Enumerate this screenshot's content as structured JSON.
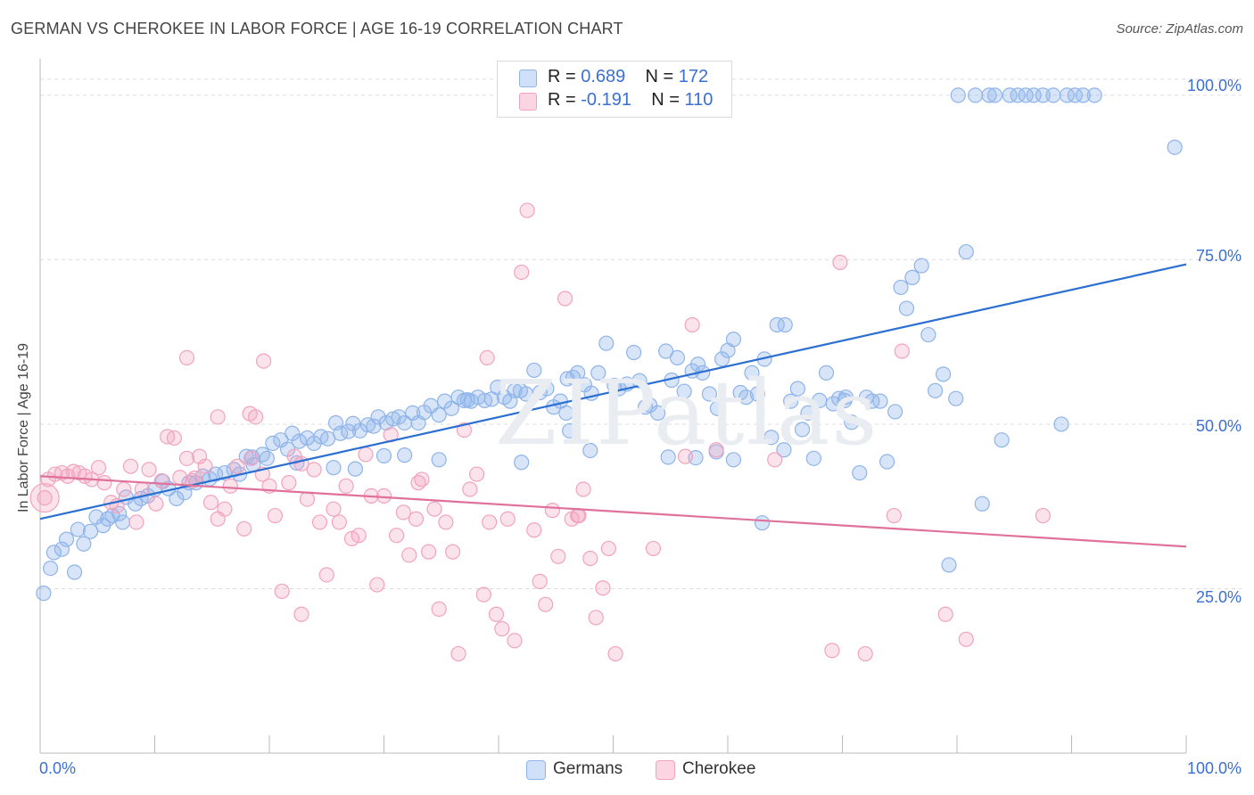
{
  "header": {
    "title": "GERMAN VS CHEROKEE IN LABOR FORCE | AGE 16-19 CORRELATION CHART",
    "source": "Source: ZipAtlas.com"
  },
  "watermark": "ZIPatlas",
  "stats": [
    {
      "r_label": "R =",
      "r_value": "0.689",
      "n_label": "N =",
      "n_value": "172",
      "color": "#8fb4ea"
    },
    {
      "r_label": "R =",
      "r_value": "-0.191",
      "n_label": "N =",
      "n_value": "110",
      "color": "#f2a3bd"
    }
  ],
  "legend": [
    {
      "label": "Germans",
      "color": "#8fb4ea"
    },
    {
      "label": "Cherokee",
      "color": "#f2a3bd"
    }
  ],
  "chart_data": {
    "type": "scatter",
    "title": "GERMAN VS CHEROKEE IN LABOR FORCE | AGE 16-19 CORRELATION CHART",
    "xlabel": "",
    "ylabel": "In Labor Force | Age 16-19",
    "xlim": [
      0,
      100
    ],
    "ylim": [
      0,
      105
    ],
    "x_tick_labels": [
      "0.0%",
      "100.0%"
    ],
    "y_ticks": [
      25,
      50,
      75,
      100
    ],
    "y_tick_labels": [
      "25.0%",
      "50.0%",
      "75.0%",
      "100.0%"
    ],
    "grid": true,
    "legend_position": "bottom",
    "series": [
      {
        "name": "Germans",
        "color": "#8fb4ea",
        "line_color": "#2a6fd1",
        "trend": {
          "x": [
            0,
            100
          ],
          "y": [
            35.6,
            74.3
          ]
        },
        "points": [
          [
            0.3,
            24.3
          ],
          [
            0.9,
            28.1
          ],
          [
            1.2,
            30.5
          ],
          [
            1.9,
            31.0
          ],
          [
            2.3,
            32.5
          ],
          [
            3.0,
            27.5
          ],
          [
            3.3,
            34.0
          ],
          [
            3.8,
            31.8
          ],
          [
            4.4,
            33.7
          ],
          [
            4.9,
            35.9
          ],
          [
            5.5,
            34.6
          ],
          [
            5.9,
            35.6
          ],
          [
            6.3,
            36.1
          ],
          [
            6.9,
            36.4
          ],
          [
            7.2,
            35.1
          ],
          [
            7.5,
            38.9
          ],
          [
            8.3,
            37.9
          ],
          [
            8.8,
            38.7
          ],
          [
            9.4,
            39.1
          ],
          [
            10.0,
            40.1
          ],
          [
            10.7,
            41.3
          ],
          [
            11.2,
            40.2
          ],
          [
            11.9,
            38.7
          ],
          [
            12.6,
            39.6
          ],
          [
            13.0,
            41.1
          ],
          [
            13.6,
            41.1
          ],
          [
            14.2,
            42.1
          ],
          [
            14.8,
            41.7
          ],
          [
            15.3,
            42.4
          ],
          [
            16.1,
            42.6
          ],
          [
            16.9,
            43.1
          ],
          [
            17.4,
            42.4
          ],
          [
            18.0,
            45.1
          ],
          [
            18.6,
            43.8
          ],
          [
            19.4,
            45.4
          ],
          [
            19.8,
            44.8
          ],
          [
            20.3,
            47.1
          ],
          [
            21.0,
            47.6
          ],
          [
            21.6,
            46.2
          ],
          [
            22.0,
            48.6
          ],
          [
            22.6,
            47.4
          ],
          [
            23.3,
            47.9
          ],
          [
            23.9,
            47.1
          ],
          [
            24.5,
            48.1
          ],
          [
            25.1,
            47.8
          ],
          [
            25.8,
            50.2
          ],
          [
            26.2,
            48.6
          ],
          [
            26.9,
            48.9
          ],
          [
            27.3,
            50.1
          ],
          [
            27.9,
            49.0
          ],
          [
            28.6,
            49.9
          ],
          [
            29.1,
            49.7
          ],
          [
            29.5,
            51.1
          ],
          [
            30.2,
            50.2
          ],
          [
            30.8,
            50.8
          ],
          [
            31.3,
            51.1
          ],
          [
            31.8,
            50.2
          ],
          [
            32.5,
            51.7
          ],
          [
            33.0,
            50.2
          ],
          [
            33.5,
            51.8
          ],
          [
            34.1,
            52.8
          ],
          [
            34.8,
            51.4
          ],
          [
            35.3,
            53.5
          ],
          [
            35.9,
            52.4
          ],
          [
            36.5,
            54.1
          ],
          [
            37.0,
            53.6
          ],
          [
            37.6,
            53.5
          ],
          [
            38.2,
            54.1
          ],
          [
            38.8,
            53.6
          ],
          [
            39.4,
            53.8
          ],
          [
            39.9,
            55.6
          ],
          [
            40.5,
            54.1
          ],
          [
            41.0,
            53.5
          ],
          [
            41.4,
            55.1
          ],
          [
            41.9,
            55.1
          ],
          [
            42.4,
            54.6
          ],
          [
            43.1,
            58.2
          ],
          [
            43.6,
            54.8
          ],
          [
            44.2,
            55.4
          ],
          [
            44.8,
            52.6
          ],
          [
            45.4,
            53.5
          ],
          [
            45.9,
            51.7
          ],
          [
            46.5,
            57.1
          ],
          [
            46.9,
            57.8
          ],
          [
            47.5,
            56.0
          ],
          [
            48.1,
            54.7
          ],
          [
            48.7,
            57.8
          ],
          [
            49.4,
            62.3
          ],
          [
            50.1,
            55.9
          ],
          [
            50.5,
            55.4
          ],
          [
            51.2,
            56.1
          ],
          [
            51.8,
            60.9
          ],
          [
            52.3,
            56.6
          ],
          [
            52.8,
            52.6
          ],
          [
            53.2,
            52.9
          ],
          [
            53.9,
            51.7
          ],
          [
            54.6,
            61.1
          ],
          [
            55.1,
            56.7
          ],
          [
            55.6,
            60.1
          ],
          [
            56.2,
            55.0
          ],
          [
            56.9,
            58.1
          ],
          [
            57.4,
            59.1
          ],
          [
            57.8,
            57.8
          ],
          [
            58.4,
            54.6
          ],
          [
            59.1,
            52.4
          ],
          [
            59.5,
            59.9
          ],
          [
            60.0,
            61.2
          ],
          [
            60.5,
            62.9
          ],
          [
            61.1,
            54.8
          ],
          [
            61.6,
            54.1
          ],
          [
            62.1,
            57.8
          ],
          [
            62.6,
            54.6
          ],
          [
            63.2,
            59.9
          ],
          [
            63.8,
            48.0
          ],
          [
            64.3,
            65.1
          ],
          [
            64.9,
            46.1
          ],
          [
            65.5,
            53.5
          ],
          [
            66.1,
            55.4
          ],
          [
            66.5,
            49.2
          ],
          [
            67.0,
            51.7
          ],
          [
            67.5,
            44.8
          ],
          [
            68.0,
            53.6
          ],
          [
            68.6,
            57.8
          ],
          [
            69.2,
            53.1
          ],
          [
            69.7,
            53.9
          ],
          [
            70.3,
            54.1
          ],
          [
            70.8,
            50.3
          ],
          [
            71.5,
            42.6
          ],
          [
            72.1,
            54.1
          ],
          [
            72.6,
            53.5
          ],
          [
            73.3,
            53.5
          ],
          [
            73.9,
            44.3
          ],
          [
            74.6,
            51.9
          ],
          [
            75.1,
            70.8
          ],
          [
            75.6,
            67.6
          ],
          [
            76.1,
            72.3
          ],
          [
            76.9,
            74.1
          ],
          [
            77.5,
            63.6
          ],
          [
            78.1,
            55.1
          ],
          [
            78.8,
            57.6
          ],
          [
            79.3,
            28.6
          ],
          [
            79.9,
            53.9
          ],
          [
            80.1,
            100.0
          ],
          [
            80.8,
            76.2
          ],
          [
            81.6,
            100.0
          ],
          [
            82.2,
            37.9
          ],
          [
            82.8,
            100.0
          ],
          [
            83.3,
            100.0
          ],
          [
            83.9,
            47.6
          ],
          [
            84.6,
            100.0
          ],
          [
            85.3,
            100.0
          ],
          [
            86.0,
            100.0
          ],
          [
            86.7,
            100.0
          ],
          [
            87.5,
            100.0
          ],
          [
            88.4,
            100.0
          ],
          [
            89.1,
            50.0
          ],
          [
            89.6,
            100.0
          ],
          [
            90.3,
            100.0
          ],
          [
            91.0,
            100.0
          ],
          [
            92.0,
            100.0
          ],
          [
            34.8,
            44.6
          ],
          [
            27.5,
            43.2
          ],
          [
            18.5,
            45.0
          ],
          [
            63.0,
            35.0
          ],
          [
            54.8,
            45.0
          ],
          [
            60.5,
            44.6
          ],
          [
            37.3,
            53.7
          ],
          [
            65.0,
            65.1
          ],
          [
            70.2,
            53.6
          ],
          [
            22.4,
            44.1
          ],
          [
            42.0,
            44.2
          ],
          [
            31.8,
            45.3
          ],
          [
            46.0,
            56.9
          ],
          [
            25.6,
            43.4
          ],
          [
            48.0,
            46.0
          ],
          [
            57.2,
            44.9
          ],
          [
            99.0,
            92.1
          ],
          [
            59.0,
            45.8
          ],
          [
            46.2,
            49.0
          ],
          [
            30.0,
            45.2
          ]
        ]
      },
      {
        "name": "Cherokee",
        "color": "#f2a3bd",
        "line_color": "#e0719a",
        "trend": {
          "x": [
            0,
            100
          ],
          "y": [
            42.1,
            31.4
          ]
        },
        "points": [
          [
            0.4,
            38.8
          ],
          [
            0.7,
            41.6
          ],
          [
            1.3,
            42.4
          ],
          [
            1.9,
            42.6
          ],
          [
            2.4,
            42.1
          ],
          [
            2.9,
            42.8
          ],
          [
            3.4,
            42.6
          ],
          [
            3.9,
            42.1
          ],
          [
            4.5,
            41.6
          ],
          [
            5.1,
            43.4
          ],
          [
            5.6,
            41.1
          ],
          [
            6.2,
            38.1
          ],
          [
            6.7,
            37.6
          ],
          [
            7.3,
            40.1
          ],
          [
            7.9,
            43.6
          ],
          [
            8.4,
            35.1
          ],
          [
            8.9,
            40.1
          ],
          [
            9.5,
            43.1
          ],
          [
            10.1,
            37.9
          ],
          [
            10.6,
            41.4
          ],
          [
            11.1,
            48.1
          ],
          [
            11.7,
            47.9
          ],
          [
            12.2,
            41.9
          ],
          [
            12.8,
            44.8
          ],
          [
            13.3,
            41.4
          ],
          [
            13.9,
            45.1
          ],
          [
            14.4,
            43.6
          ],
          [
            14.9,
            38.1
          ],
          [
            15.5,
            35.6
          ],
          [
            16.1,
            37.1
          ],
          [
            16.6,
            40.6
          ],
          [
            17.2,
            43.6
          ],
          [
            17.8,
            34.1
          ],
          [
            18.4,
            44.8
          ],
          [
            18.8,
            51.1
          ],
          [
            19.4,
            42.4
          ],
          [
            20.0,
            40.6
          ],
          [
            20.5,
            36.1
          ],
          [
            21.1,
            24.6
          ],
          [
            21.7,
            41.1
          ],
          [
            22.2,
            45.1
          ],
          [
            22.8,
            21.1
          ],
          [
            23.3,
            38.6
          ],
          [
            23.9,
            43.1
          ],
          [
            24.4,
            35.1
          ],
          [
            25.0,
            27.1
          ],
          [
            25.6,
            37.1
          ],
          [
            26.1,
            35.1
          ],
          [
            26.7,
            40.6
          ],
          [
            27.2,
            32.6
          ],
          [
            27.8,
            33.1
          ],
          [
            28.4,
            45.4
          ],
          [
            28.9,
            39.1
          ],
          [
            29.4,
            25.6
          ],
          [
            30.0,
            39.1
          ],
          [
            30.6,
            48.4
          ],
          [
            31.1,
            33.1
          ],
          [
            31.7,
            36.6
          ],
          [
            32.2,
            30.1
          ],
          [
            32.8,
            35.6
          ],
          [
            33.3,
            41.6
          ],
          [
            33.9,
            30.6
          ],
          [
            34.4,
            37.1
          ],
          [
            34.8,
            21.9
          ],
          [
            35.4,
            35.1
          ],
          [
            36.0,
            30.6
          ],
          [
            36.5,
            15.1
          ],
          [
            37.0,
            49.1
          ],
          [
            37.5,
            40.1
          ],
          [
            38.1,
            42.4
          ],
          [
            38.7,
            24.1
          ],
          [
            39.2,
            35.1
          ],
          [
            39.8,
            21.1
          ],
          [
            40.3,
            18.9
          ],
          [
            40.8,
            35.6
          ],
          [
            41.4,
            17.1
          ],
          [
            42.0,
            73.1
          ],
          [
            42.5,
            82.5
          ],
          [
            43.1,
            33.9
          ],
          [
            43.6,
            26.1
          ],
          [
            44.1,
            22.6
          ],
          [
            44.7,
            36.9
          ],
          [
            45.2,
            29.9
          ],
          [
            45.8,
            69.1
          ],
          [
            46.4,
            35.6
          ],
          [
            46.9,
            36.1
          ],
          [
            47.4,
            40.1
          ],
          [
            48.0,
            29.6
          ],
          [
            48.5,
            20.6
          ],
          [
            49.1,
            25.1
          ],
          [
            49.6,
            31.1
          ],
          [
            50.2,
            15.1
          ],
          [
            56.3,
            45.1
          ],
          [
            56.9,
            65.1
          ],
          [
            64.1,
            44.6
          ],
          [
            69.1,
            15.6
          ],
          [
            69.8,
            74.6
          ],
          [
            72.0,
            15.1
          ],
          [
            74.5,
            36.1
          ],
          [
            75.2,
            61.1
          ],
          [
            79.0,
            21.1
          ],
          [
            80.8,
            17.3
          ],
          [
            87.5,
            36.1
          ],
          [
            39.0,
            60.1
          ],
          [
            19.5,
            59.6
          ],
          [
            12.8,
            60.1
          ],
          [
            15.5,
            51.1
          ],
          [
            18.3,
            51.6
          ],
          [
            33.0,
            41.1
          ],
          [
            53.5,
            31.1
          ],
          [
            47.0,
            36.1
          ],
          [
            59.0,
            46.1
          ],
          [
            22.8,
            44.0
          ],
          [
            13.5,
            41.8
          ]
        ]
      }
    ]
  }
}
